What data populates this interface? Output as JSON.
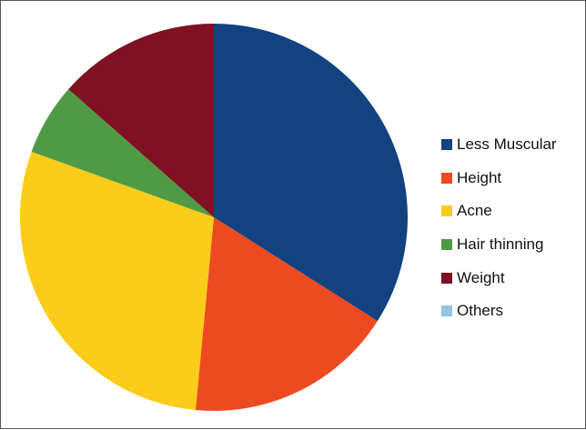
{
  "chart_data": {
    "type": "pie",
    "title": "",
    "legend_position": "right",
    "start_angle_deg": 0,
    "direction": "clockwise",
    "slices": [
      {
        "label": "Less Muscular",
        "value": 34,
        "color": "#12427f"
      },
      {
        "label": "Height",
        "value": 17.5,
        "color": "#ee4a22"
      },
      {
        "label": "Acne",
        "value": 29,
        "color": "#fbcd19"
      },
      {
        "label": "Hair thinning",
        "value": 6,
        "color": "#4f9a45"
      },
      {
        "label": "Weight",
        "value": 13.5,
        "color": "#7f1122"
      },
      {
        "label": "Others",
        "value": 0,
        "color": "#92c5e7"
      }
    ]
  }
}
